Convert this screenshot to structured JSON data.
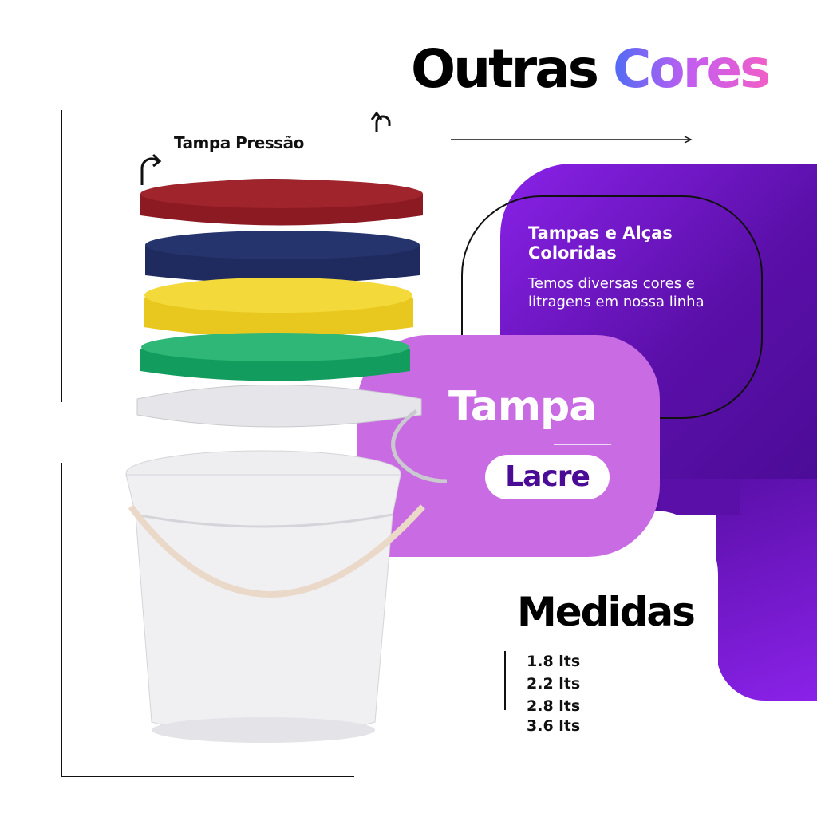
{
  "title": {
    "word1": "Outras",
    "word2": "Cores"
  },
  "label_tampa_pressao": "Tampa Pressão",
  "card": {
    "title": "Tampas e Alças Coloridas",
    "text": "Temos diversas cores e litragens em nossa linha"
  },
  "tampa_badge": {
    "title": "Tampa",
    "tag": "Lacre"
  },
  "medidas": {
    "title": "Medidas",
    "sizes": [
      "1.8 lts",
      "2.2 lts",
      "2.8 lts",
      "3.6 lts"
    ]
  },
  "colors": {
    "purple": "#5a0fa8",
    "lilac": "#c96be3",
    "lid_red": "#8b1a22",
    "lid_blue": "#1f2a5e",
    "lid_yellow": "#f0d32a",
    "lid_green": "#129d5e"
  },
  "icons": [
    "curved-arrow-icon",
    "curved-arrow-icon",
    "arrow-right-icon"
  ]
}
